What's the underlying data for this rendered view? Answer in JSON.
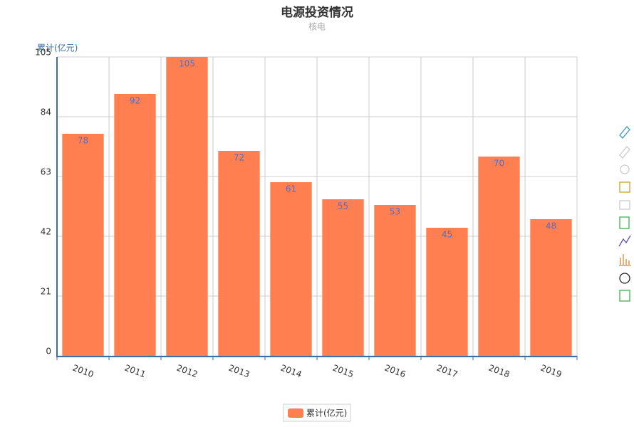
{
  "chart_data": {
    "type": "bar",
    "title": "电源投资情况",
    "subtitle": "核电",
    "y_axis_label": "累计(亿元)",
    "categories": [
      "2010",
      "2011",
      "2012",
      "2013",
      "2014",
      "2015",
      "2016",
      "2017",
      "2018",
      "2019"
    ],
    "series": [
      {
        "name": "累计(亿元)",
        "color": "#ff7f50",
        "values": [
          78,
          92,
          105,
          72,
          61,
          55,
          53,
          45,
          70,
          48
        ]
      }
    ],
    "ylim": [
      0,
      105
    ],
    "yticks": [
      0,
      21,
      42,
      63,
      84,
      105
    ],
    "grid": true,
    "legend": "bottom"
  }
}
